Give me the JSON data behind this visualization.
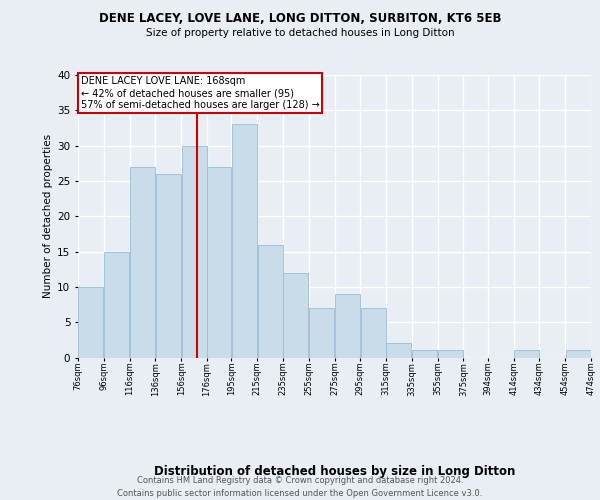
{
  "title": "DENE LACEY, LOVE LANE, LONG DITTON, SURBITON, KT6 5EB",
  "subtitle": "Size of property relative to detached houses in Long Ditton",
  "xlabel": "Distribution of detached houses by size in Long Ditton",
  "ylabel": "Number of detached properties",
  "footer_line1": "Contains HM Land Registry data © Crown copyright and database right 2024.",
  "footer_line2": "Contains public sector information licensed under the Open Government Licence v3.0.",
  "property_label": "DENE LACEY LOVE LANE: 168sqm",
  "annotation_line1": "← 42% of detached houses are smaller (95)",
  "annotation_line2": "57% of semi-detached houses are larger (128) →",
  "bin_labels": [
    "76sqm",
    "96sqm",
    "116sqm",
    "136sqm",
    "156sqm",
    "176sqm",
    "195sqm",
    "215sqm",
    "235sqm",
    "255sqm",
    "275sqm",
    "295sqm",
    "315sqm",
    "335sqm",
    "355sqm",
    "375sqm",
    "394sqm",
    "414sqm",
    "434sqm",
    "454sqm",
    "474sqm"
  ],
  "bin_lefts": [
    76,
    96,
    116,
    136,
    156,
    176,
    195,
    215,
    235,
    255,
    275,
    295,
    315,
    335,
    355,
    375,
    394,
    414,
    434,
    454
  ],
  "bin_values": [
    10,
    15,
    27,
    26,
    30,
    27,
    33,
    16,
    12,
    7,
    9,
    7,
    2,
    1,
    1,
    0,
    0,
    1,
    0,
    1
  ],
  "bar_color": "#c9dcea",
  "bar_edge_color": "#9bbcd4",
  "reference_line_color": "#cc0000",
  "background_color": "#e8eef4",
  "grid_color": "#ffffff",
  "ylim": [
    0,
    40
  ],
  "yticks": [
    0,
    5,
    10,
    15,
    20,
    25,
    30,
    35,
    40
  ]
}
